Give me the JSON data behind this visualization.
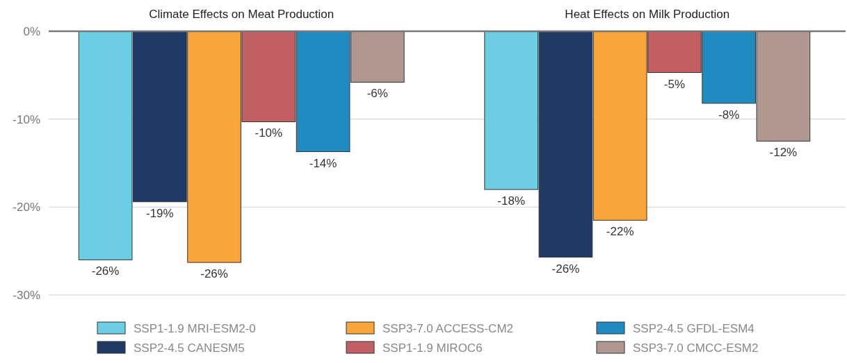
{
  "chart_data": {
    "type": "bar",
    "categories": [
      "Climate Effects on Meat Production",
      "Heat Effects on Milk Production"
    ],
    "series": [
      {
        "name": "SSP1-1.9 MRI-ESM2-0",
        "color": "#6dcde3",
        "values": [
          -26.0,
          -18.0
        ],
        "value_labels": [
          "-26%",
          "-18%"
        ]
      },
      {
        "name": "SSP2-4.5 CANESM5",
        "color": "#1f3864",
        "values": [
          -19.4,
          -25.7
        ],
        "value_labels": [
          "-19%",
          "-26%"
        ]
      },
      {
        "name": "SSP3-7.0 ACCESS-CM2",
        "color": "#f9a53a",
        "values": [
          -26.3,
          -21.5
        ],
        "value_labels": [
          "-26%",
          "-22%"
        ]
      },
      {
        "name": "SSP1-1.9 MIROC6",
        "color": "#c06064",
        "values": [
          -10.3,
          -4.7
        ],
        "value_labels": [
          "-10%",
          "-5%"
        ]
      },
      {
        "name": "SSP2-4.5 GFDL-ESM4",
        "color": "#1f8bc0",
        "values": [
          -13.7,
          -8.2
        ],
        "value_labels": [
          "-14%",
          "-8%"
        ]
      },
      {
        "name": "SSP3-7.0 CMCC-ESM2",
        "color": "#b09890",
        "values": [
          -5.8,
          -12.5
        ],
        "value_labels": [
          "-6%",
          "-12%"
        ]
      }
    ],
    "ylim": [
      -30,
      0
    ],
    "yticks": [
      {
        "value": 0,
        "label": "0%"
      },
      {
        "value": -10,
        "label": "-10%"
      },
      {
        "value": -20,
        "label": "-20%"
      },
      {
        "value": -30,
        "label": "-30%"
      }
    ],
    "grid": "y",
    "legend": "bottom"
  }
}
